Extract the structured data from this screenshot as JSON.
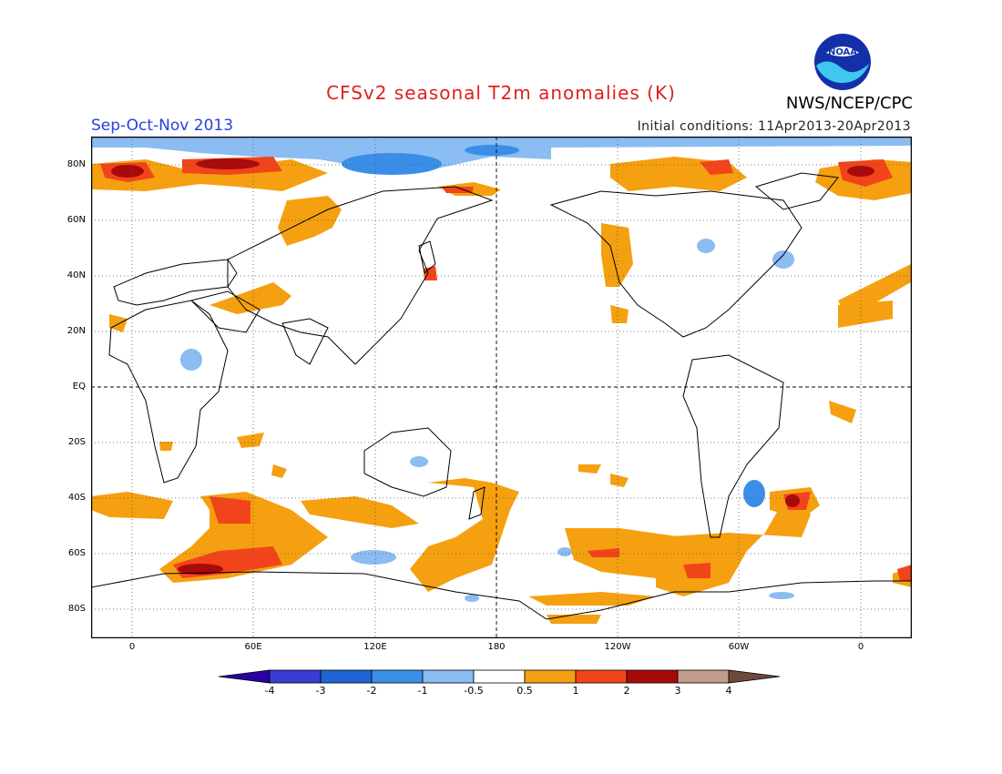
{
  "header": {
    "title": "CFSv2 seasonal T2m anomalies (K)",
    "org": "NWS/NCEP/CPC",
    "logo_text": "NOAA",
    "season": "Sep-Oct-Nov 2013",
    "initial_conditions": "Initial conditions: 11Apr2013-20Apr2013"
  },
  "map": {
    "lat_labels": [
      "80N",
      "60N",
      "40N",
      "20N",
      "EQ",
      "20S",
      "40S",
      "60S",
      "80S"
    ],
    "lon_labels": [
      "0",
      "60E",
      "120E",
      "180",
      "120W",
      "60W",
      "0"
    ]
  },
  "colorbar": {
    "tick_labels": [
      "-4",
      "-3",
      "-2",
      "-1",
      "-0.5",
      "0.5",
      "1",
      "2",
      "3",
      "4"
    ],
    "colors": [
      "#2a00a0",
      "#3b3cd0",
      "#1f64d4",
      "#3a8ee8",
      "#8bbcf2",
      "#ffffff",
      "#f5a010",
      "#f2441a",
      "#a80a0a",
      "#c29c8c",
      "#6b4a3c"
    ]
  }
}
